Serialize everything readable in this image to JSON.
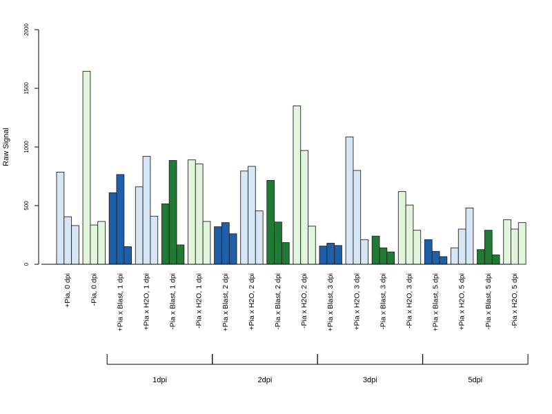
{
  "chart_data": {
    "type": "bar",
    "ylabel": "Raw Signal",
    "ylim": [
      0,
      2000
    ],
    "yticks": [
      0,
      500,
      1000,
      1500,
      2000
    ],
    "categories": [
      "+Pia, 0 dpi",
      "-Pia, 0 dpi",
      "+Pia x Blast, 1 dpi",
      "+Pia x H2O, 1 dpi",
      "-Pia x Blast, 1 dpi",
      "-Pia x H2O, 1 dpi",
      "+Pia x Blast, 2 dpi",
      "+Pia x H2O, 2 dpi",
      "-Pia x Blast, 2 dpi",
      "-Pia x H2O, 2 dpi",
      "+Pia x Blast, 3 dpi",
      "+Pia x H2O, 3 dpi",
      "-Pia x Blast, 3 dpi",
      "-Pia x H2O, 3 dpi",
      "+Pia x Blast, 5 dpi",
      "+Pia x H2O, 5 dpi",
      "-Pia x Blast, 5 dpi",
      "-Pia x H2O, 5 dpi"
    ],
    "values": [
      [
        785,
        405,
        330
      ],
      [
        1645,
        335,
        365
      ],
      [
        610,
        765,
        150
      ],
      [
        660,
        920,
        410
      ],
      [
        515,
        885,
        165
      ],
      [
        890,
        855,
        365
      ],
      [
        320,
        355,
        260
      ],
      [
        795,
        835,
        455
      ],
      [
        715,
        360,
        185
      ],
      [
        1350,
        970,
        325
      ],
      [
        155,
        180,
        160
      ],
      [
        1085,
        800,
        210
      ],
      [
        240,
        140,
        105
      ],
      [
        620,
        505,
        290
      ],
      [
        210,
        110,
        65
      ],
      [
        140,
        300,
        480
      ],
      [
        125,
        290,
        80
      ],
      [
        380,
        300,
        355
      ]
    ],
    "bar_colors": [
      "#d6e6f5",
      "#e1f5dc",
      "#1f5fa8",
      "#d6e6f5",
      "#217a33",
      "#e1f5dc",
      "#1f5fa8",
      "#d6e6f5",
      "#217a33",
      "#e1f5dc",
      "#1f5fa8",
      "#d6e6f5",
      "#217a33",
      "#e1f5dc",
      "#1f5fa8",
      "#d6e6f5",
      "#217a33",
      "#e1f5dc"
    ],
    "groups": [
      {
        "label": "1dpi",
        "first": 2,
        "last": 5
      },
      {
        "label": "2dpi",
        "first": 6,
        "last": 9
      },
      {
        "label": "3dpi",
        "first": 10,
        "last": 13
      },
      {
        "label": "5dpi",
        "first": 14,
        "last": 17
      }
    ],
    "grid": false,
    "legend": "none"
  }
}
